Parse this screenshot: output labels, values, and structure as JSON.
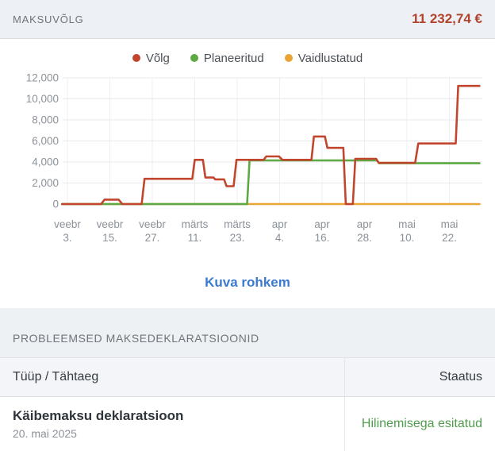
{
  "header": {
    "title": "MAKSUVÕLG",
    "amount": "11 232,74 €",
    "amount_color": "#b2432c"
  },
  "chart_section": {
    "show_more_label": "Kuva rohkem"
  },
  "chart_data": {
    "type": "line",
    "title": "",
    "unit": "EUR",
    "legend_position": "top",
    "grid": true,
    "ylim": [
      0,
      12000
    ],
    "y_tick_values": [
      0,
      2000,
      4000,
      6000,
      8000,
      10000,
      12000
    ],
    "y_tick_labels": [
      "0",
      "2,000",
      "4,000",
      "6,000",
      "8,000",
      "10,000",
      "12,000"
    ],
    "x_ticks": [
      {
        "month": "veebr",
        "day": "3.",
        "d": 0
      },
      {
        "month": "veebr",
        "day": "15.",
        "d": 12
      },
      {
        "month": "veebr",
        "day": "27.",
        "d": 24
      },
      {
        "month": "märts",
        "day": "11.",
        "d": 36
      },
      {
        "month": "märts",
        "day": "23.",
        "d": 48
      },
      {
        "month": "apr",
        "day": "4.",
        "d": 60
      },
      {
        "month": "apr",
        "day": "16.",
        "d": 72
      },
      {
        "month": "apr",
        "day": "28.",
        "d": 84
      },
      {
        "month": "mai",
        "day": "10.",
        "d": 96
      },
      {
        "month": "mai",
        "day": "22.",
        "d": 108
      }
    ],
    "x_domain_days": [
      -1.5,
      116.5
    ],
    "series": [
      {
        "name": "Võlg",
        "color": "#c2462d",
        "points": [
          [
            -1.5,
            0
          ],
          [
            9.5,
            0
          ],
          [
            10.5,
            420
          ],
          [
            14.5,
            420
          ],
          [
            15.5,
            0
          ],
          [
            21,
            0
          ],
          [
            21.8,
            2400
          ],
          [
            35.3,
            2400
          ],
          [
            36,
            4200
          ],
          [
            38.3,
            4200
          ],
          [
            39,
            2520
          ],
          [
            41.3,
            2520
          ],
          [
            41.8,
            2350
          ],
          [
            44.3,
            2350
          ],
          [
            45,
            1700
          ],
          [
            47,
            1700
          ],
          [
            47.8,
            4200
          ],
          [
            55.5,
            4200
          ],
          [
            56.2,
            4530
          ],
          [
            59.8,
            4530
          ],
          [
            60.8,
            4200
          ],
          [
            69,
            4200
          ],
          [
            69.7,
            6420
          ],
          [
            72.8,
            6420
          ],
          [
            73.5,
            5340
          ],
          [
            78,
            5340
          ],
          [
            78.7,
            0
          ],
          [
            80.7,
            0
          ],
          [
            81.4,
            4300
          ],
          [
            87.3,
            4300
          ],
          [
            88,
            3920
          ],
          [
            98.3,
            3920
          ],
          [
            99.2,
            5760
          ],
          [
            109.8,
            5760
          ],
          [
            110.5,
            11233
          ],
          [
            116.5,
            11233
          ]
        ]
      },
      {
        "name": "Planeeritud",
        "color": "#5da943",
        "points": [
          [
            -1.5,
            0
          ],
          [
            50.8,
            0
          ],
          [
            51.5,
            4150
          ],
          [
            87.5,
            4150
          ],
          [
            88.2,
            3880
          ],
          [
            116.5,
            3880
          ]
        ]
      },
      {
        "name": "Vaidlustatud",
        "color": "#e9a435",
        "points": [
          [
            -1.5,
            0
          ],
          [
            116.5,
            0
          ]
        ]
      }
    ]
  },
  "declarations": {
    "title": "PROBLEEMSED MAKSEDEKLARATSIOONID",
    "columns": [
      "Tüüp / Tähtaeg",
      "Staatus"
    ],
    "rows": [
      {
        "type": "Käibemaksu deklaratsioon",
        "due": "20. mai 2025",
        "status": "Hilinemisega esitatud",
        "status_color": "#4f9d4c"
      }
    ]
  }
}
